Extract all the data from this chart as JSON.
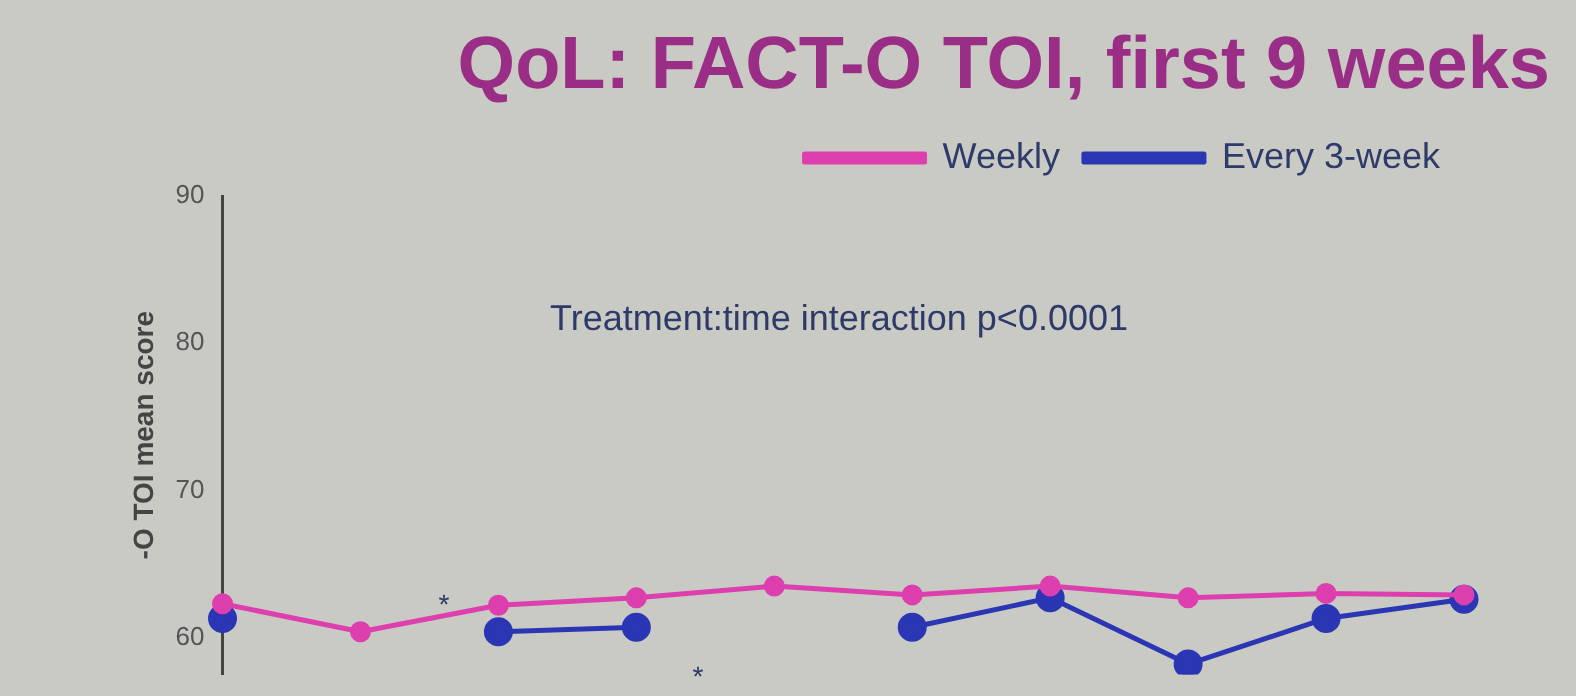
{
  "chart_data": {
    "type": "line",
    "title": "QoL: FACT-O TOI, first 9 weeks",
    "ylabel": "-O TOI mean score",
    "categories": [
      null,
      null,
      null,
      null,
      null,
      null,
      null,
      null,
      null,
      null
    ],
    "series": [
      {
        "name": "Weekly",
        "color": "#dd3fae",
        "values": [
          62.3,
          60.4,
          62.2,
          62.7,
          63.5,
          62.9,
          63.5,
          62.7,
          63.0,
          62.9
        ]
      },
      {
        "name": "Every 3-week",
        "color": "#2b36b5",
        "values": [
          61.3,
          null,
          60.4,
          60.7,
          null,
          60.7,
          62.7,
          58.2,
          61.3,
          62.6
        ]
      }
    ],
    "ylim": [
      57.5,
      90
    ],
    "yticks": [
      60,
      70,
      80,
      90
    ],
    "grid": false,
    "legend": "top right",
    "marker": "circle",
    "tick_labels": "y",
    "annotations": [
      "Treatment:time interaction p<0.0001",
      "*",
      "*"
    ]
  }
}
